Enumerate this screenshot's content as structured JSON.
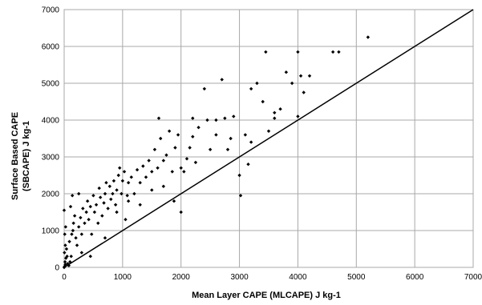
{
  "chart_data": {
    "type": "scatter",
    "title": "",
    "xlabel": "Mean Layer CAPE (MLCAPE) J kg-1",
    "ylabel_lines": [
      "Surface Based CAPE",
      "(SBCAPE)  J kg-1"
    ],
    "xlim": [
      0,
      7000
    ],
    "ylim": [
      0,
      7000
    ],
    "xticks": [
      0,
      1000,
      2000,
      3000,
      4000,
      5000,
      6000,
      7000
    ],
    "yticks": [
      0,
      1000,
      2000,
      3000,
      4000,
      5000,
      6000,
      7000
    ],
    "xtick_labels": [
      "0",
      "1000",
      "2000",
      "3000",
      "4000",
      "5000",
      "6000",
      "7000"
    ],
    "ytick_labels": [
      "0",
      "1000",
      "2000",
      "3000",
      "4000",
      "5000",
      "6000",
      "7000"
    ],
    "grid": true,
    "legend": "none",
    "reference_line": {
      "x": [
        0,
        7000
      ],
      "y": [
        0,
        7000
      ]
    },
    "colors": {
      "points": "#000000",
      "grid": "#a8a8a8",
      "line": "#000000"
    },
    "series": [
      {
        "points": [
          [
            0,
            0
          ],
          [
            10,
            30
          ],
          [
            20,
            80
          ],
          [
            15,
            150
          ],
          [
            30,
            250
          ],
          [
            5,
            400
          ],
          [
            20,
            600
          ],
          [
            10,
            900
          ],
          [
            0,
            1550
          ],
          [
            25,
            1100
          ],
          [
            40,
            500
          ],
          [
            50,
            300
          ],
          [
            60,
            100
          ],
          [
            80,
            50
          ],
          [
            100,
            150
          ],
          [
            120,
            300
          ],
          [
            90,
            700
          ],
          [
            130,
            900
          ],
          [
            160,
            1200
          ],
          [
            110,
            1650
          ],
          [
            180,
            1400
          ],
          [
            150,
            1000
          ],
          [
            200,
            800
          ],
          [
            220,
            600
          ],
          [
            250,
            1100
          ],
          [
            280,
            1350
          ],
          [
            300,
            900
          ],
          [
            320,
            1600
          ],
          [
            350,
            1200
          ],
          [
            380,
            1500
          ],
          [
            140,
            1950
          ],
          [
            400,
            1800
          ],
          [
            420,
            1300
          ],
          [
            450,
            1650
          ],
          [
            470,
            900
          ],
          [
            500,
            1950
          ],
          [
            520,
            1500
          ],
          [
            550,
            1700
          ],
          [
            580,
            1200
          ],
          [
            600,
            2150
          ],
          [
            620,
            1900
          ],
          [
            650,
            1400
          ],
          [
            680,
            1750
          ],
          [
            700,
            2000
          ],
          [
            720,
            2300
          ],
          [
            750,
            1600
          ],
          [
            780,
            2200
          ],
          [
            800,
            1850
          ],
          [
            830,
            2000
          ],
          [
            850,
            2350
          ],
          [
            880,
            1700
          ],
          [
            900,
            2100
          ],
          [
            930,
            2500
          ],
          [
            950,
            2700
          ],
          [
            980,
            2000
          ],
          [
            1000,
            2350
          ],
          [
            1030,
            2600
          ],
          [
            1050,
            1300
          ],
          [
            1080,
            1950
          ],
          [
            1100,
            2300
          ],
          [
            1150,
            2450
          ],
          [
            1200,
            2000
          ],
          [
            1250,
            2650
          ],
          [
            1300,
            2300
          ],
          [
            1350,
            2750
          ],
          [
            1400,
            2450
          ],
          [
            1450,
            2900
          ],
          [
            1500,
            2600
          ],
          [
            1550,
            3200
          ],
          [
            1600,
            2700
          ],
          [
            1620,
            4050
          ],
          [
            1650,
            3500
          ],
          [
            1700,
            2900
          ],
          [
            1750,
            3050
          ],
          [
            1800,
            3700
          ],
          [
            1850,
            2600
          ],
          [
            1880,
            1800
          ],
          [
            1900,
            3250
          ],
          [
            1950,
            3600
          ],
          [
            2000,
            1500
          ],
          [
            2050,
            2600
          ],
          [
            2100,
            2950
          ],
          [
            2150,
            3250
          ],
          [
            2200,
            3550
          ],
          [
            2250,
            2850
          ],
          [
            2300,
            3800
          ],
          [
            2400,
            4850
          ],
          [
            2450,
            4000
          ],
          [
            2500,
            3200
          ],
          [
            2600,
            3600
          ],
          [
            2700,
            5100
          ],
          [
            2750,
            4050
          ],
          [
            2800,
            3200
          ],
          [
            2850,
            3500
          ],
          [
            2900,
            4100
          ],
          [
            3000,
            2500
          ],
          [
            3020,
            1950
          ],
          [
            3100,
            3600
          ],
          [
            3150,
            2800
          ],
          [
            3200,
            4850
          ],
          [
            3300,
            5000
          ],
          [
            3400,
            4500
          ],
          [
            3450,
            5850
          ],
          [
            3500,
            3700
          ],
          [
            3600,
            4200
          ],
          [
            3700,
            4300
          ],
          [
            3800,
            5300
          ],
          [
            3900,
            5000
          ],
          [
            4000,
            4100
          ],
          [
            4000,
            5850
          ],
          [
            4050,
            5200
          ],
          [
            4100,
            4750
          ],
          [
            4200,
            5200
          ],
          [
            4600,
            5850
          ],
          [
            4700,
            5850
          ],
          [
            5200,
            6250
          ],
          [
            300,
            400
          ],
          [
            450,
            300
          ],
          [
            700,
            800
          ],
          [
            900,
            1500
          ],
          [
            1100,
            1800
          ],
          [
            1300,
            1700
          ],
          [
            1500,
            2100
          ],
          [
            1700,
            2200
          ],
          [
            2000,
            2700
          ],
          [
            2200,
            4050
          ],
          [
            2600,
            4000
          ],
          [
            3200,
            3400
          ],
          [
            3600,
            4050
          ],
          [
            250,
            2000
          ]
        ]
      }
    ]
  }
}
